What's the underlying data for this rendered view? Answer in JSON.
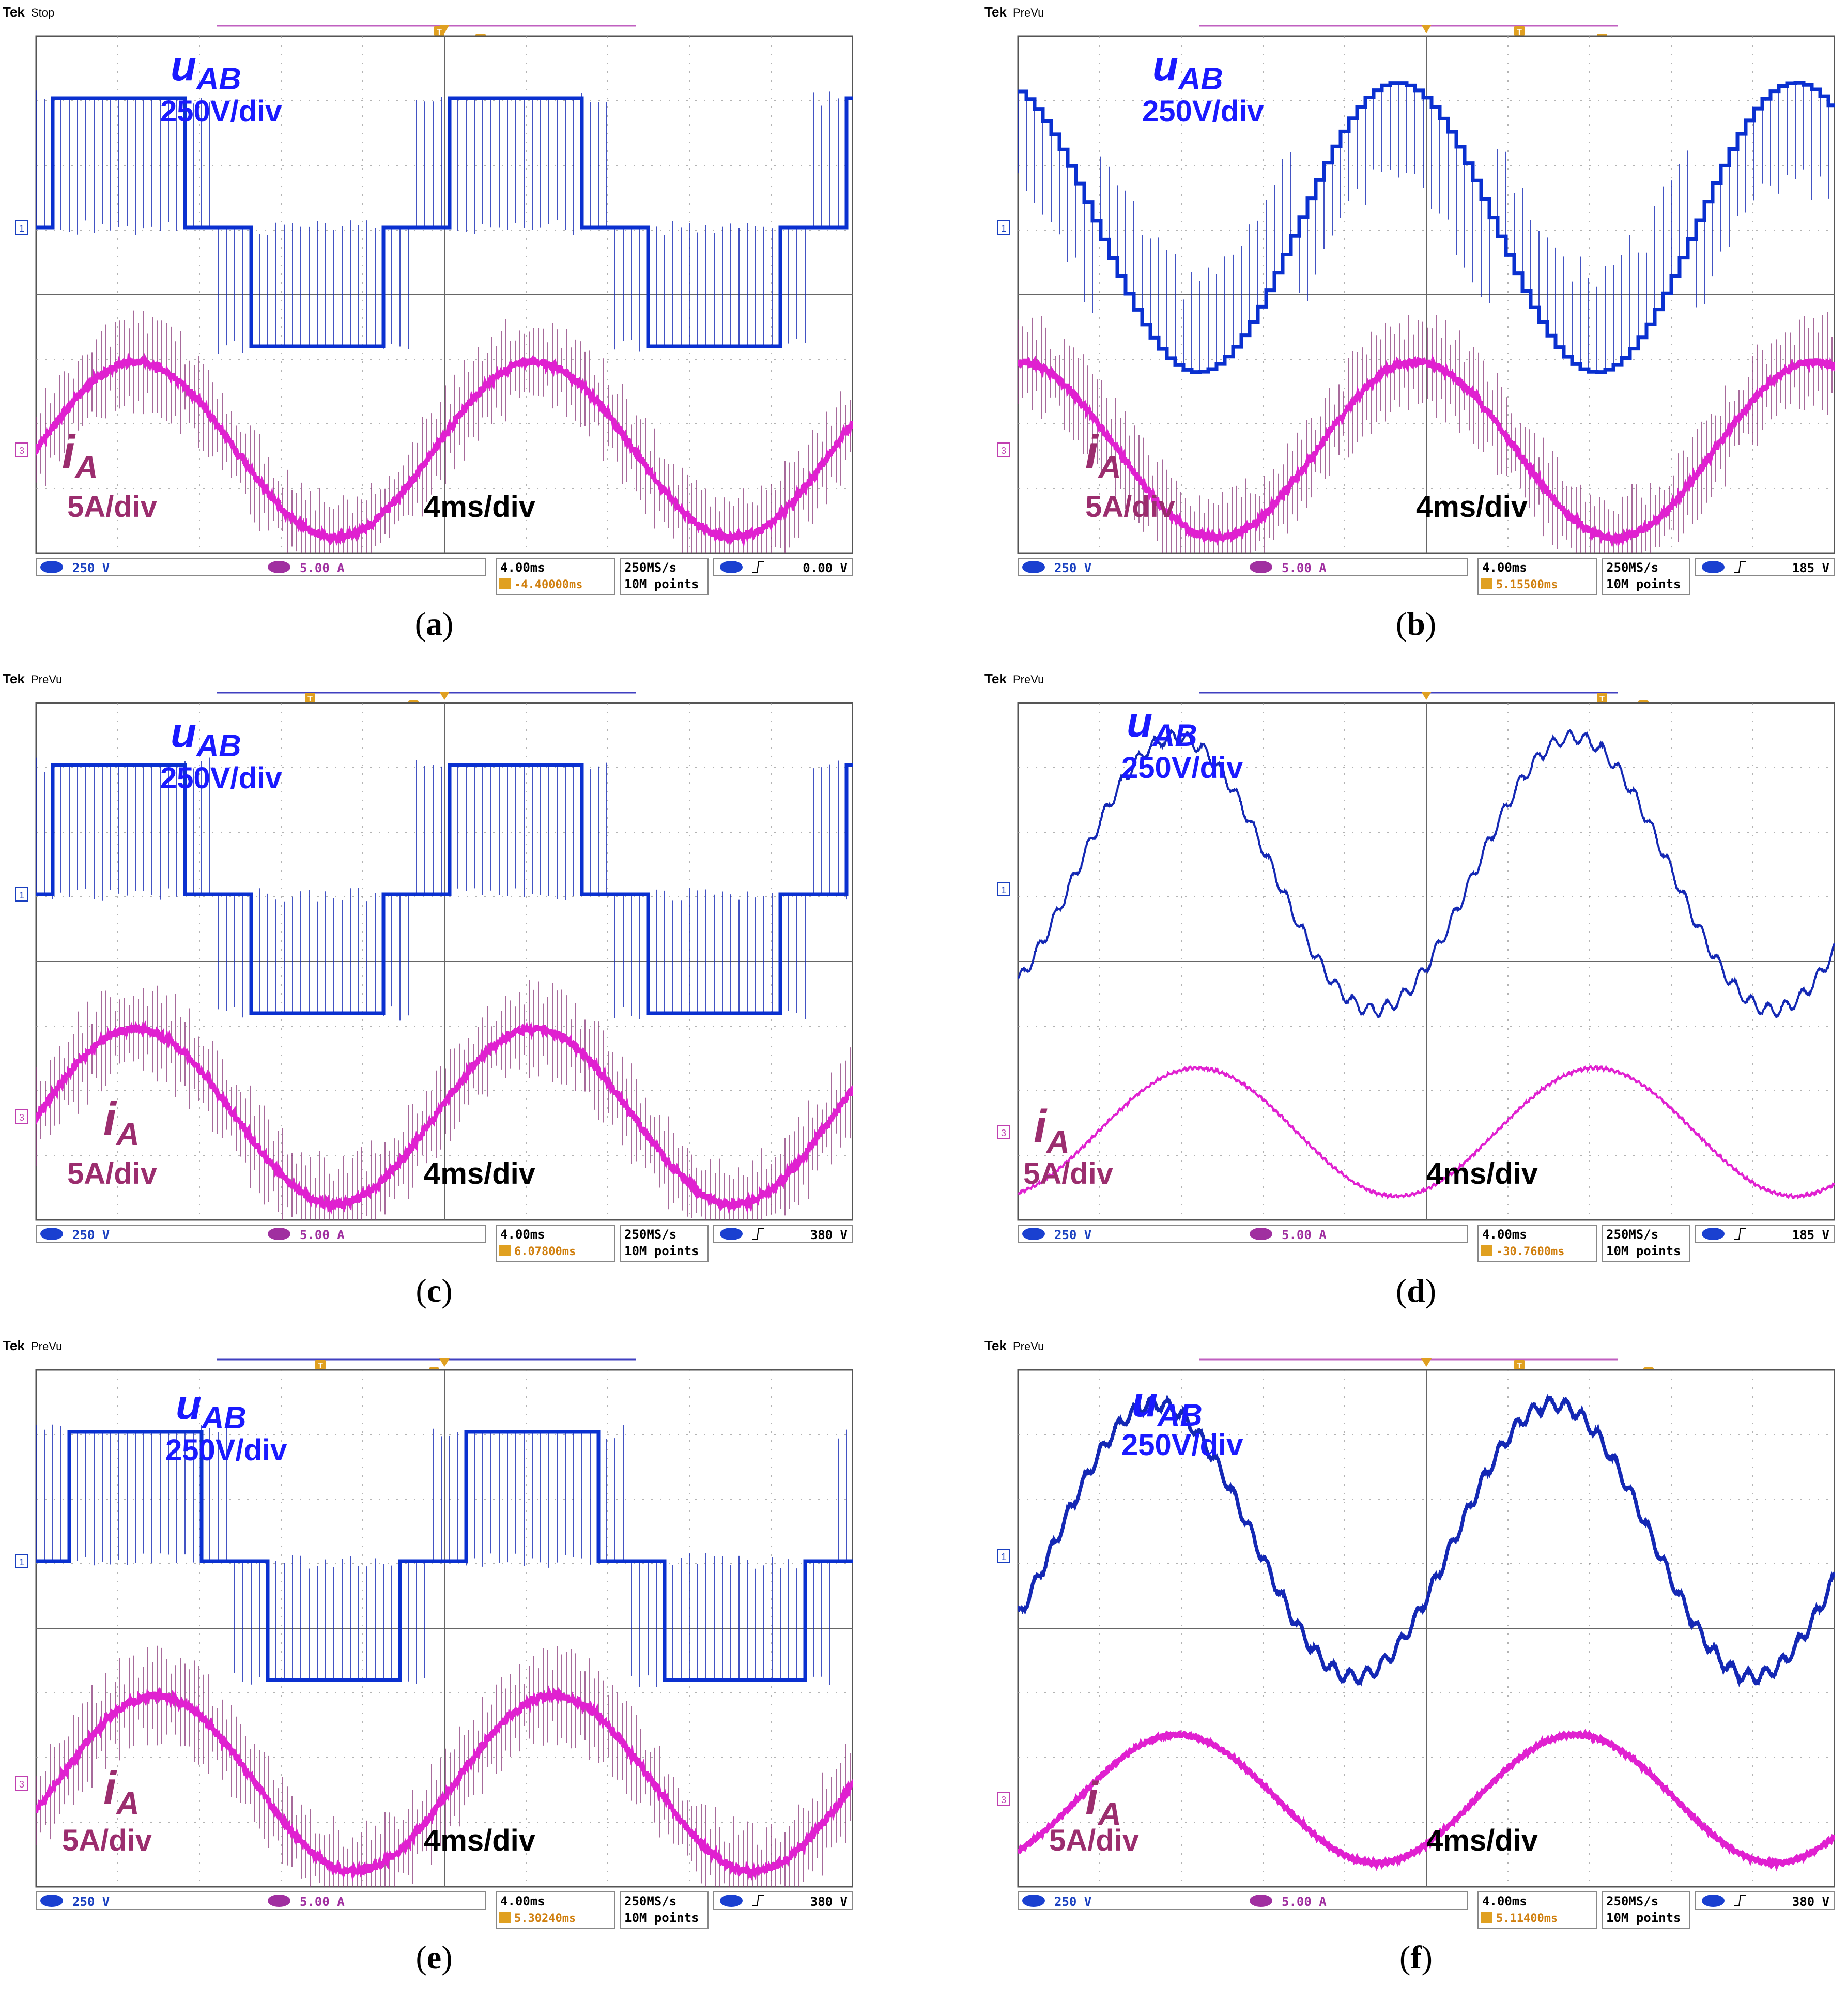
{
  "figure": {
    "panels": [
      {
        "id": "a",
        "caption_letter": "a",
        "status": "Stop",
        "volt_label": "250V/div",
        "curr_label": "5A/div",
        "time_label": "4ms/div",
        "ch1_scale": "250 V",
        "ch3_scale": "5.00 A",
        "timebase": "4.00ms",
        "trigger_pos": "-4.40000ms",
        "sample_rate": "250MS/s",
        "record": "10M points",
        "trigger_level": "0.00 V"
      },
      {
        "id": "b",
        "caption_letter": "b",
        "status": "PreVu",
        "volt_label": "250V/div",
        "curr_label": "5A/div",
        "time_label": "4ms/div",
        "ch1_scale": "250 V",
        "ch3_scale": "5.00 A",
        "timebase": "4.00ms",
        "trigger_pos": "5.15500ms",
        "sample_rate": "250MS/s",
        "record": "10M points",
        "trigger_level": "185 V"
      },
      {
        "id": "c",
        "caption_letter": "c",
        "status": "PreVu",
        "volt_label": "250V/div",
        "curr_label": "5A/div",
        "time_label": "4ms/div",
        "ch1_scale": "250 V",
        "ch3_scale": "5.00 A",
        "timebase": "4.00ms",
        "trigger_pos": "6.07800ms",
        "sample_rate": "250MS/s",
        "record": "10M points",
        "trigger_level": "380 V"
      },
      {
        "id": "d",
        "caption_letter": "d",
        "status": "PreVu",
        "volt_label": "250V/div",
        "curr_label": "5A/div",
        "time_label": "4ms/div",
        "ch1_scale": "250 V",
        "ch3_scale": "5.00 A",
        "timebase": "4.00ms",
        "trigger_pos": "-30.7600ms",
        "sample_rate": "250MS/s",
        "record": "10M points",
        "trigger_level": "185 V"
      },
      {
        "id": "e",
        "caption_letter": "e",
        "status": "PreVu",
        "volt_label": "250V/div",
        "curr_label": "5A/div",
        "time_label": "4ms/div",
        "ch1_scale": "250 V",
        "ch3_scale": "5.00 A",
        "timebase": "4.00ms",
        "trigger_pos": "5.30240ms",
        "sample_rate": "250MS/s",
        "record": "10M points",
        "trigger_level": "380 V"
      },
      {
        "id": "f",
        "caption_letter": "f",
        "status": "PreVu",
        "volt_label": "250V/div",
        "curr_label": "5A/div",
        "time_label": "4ms/div",
        "ch1_scale": "250 V",
        "ch3_scale": "5.00 A",
        "timebase": "4.00ms",
        "trigger_pos": "5.11400ms",
        "sample_rate": "250MS/s",
        "record": "10M points",
        "trigger_level": "380 V"
      }
    ],
    "brand": "Tek",
    "voltage_symbol": "u",
    "voltage_subscript": "AB",
    "current_symbol": "i",
    "current_subscript": "A",
    "ch1_marker": "1",
    "ch3_marker": "3",
    "trigger_marker": "T"
  },
  "chart_data": [
    {
      "type": "line",
      "panel": "a",
      "waveform": "three-level",
      "title": "",
      "xlabel": "4ms/div",
      "series": [
        {
          "name": "uAB",
          "unit": "V",
          "scale": "250V/div"
        },
        {
          "name": "iA",
          "unit": "A",
          "scale": "5A/div"
        }
      ],
      "x_divisions": 10,
      "y_divisions": 8,
      "grid": true
    },
    {
      "type": "line",
      "panel": "b",
      "waveform": "multilevel-sloped",
      "title": "",
      "xlabel": "4ms/div",
      "series": [
        {
          "name": "uAB",
          "unit": "V",
          "scale": "250V/div"
        },
        {
          "name": "iA",
          "unit": "A",
          "scale": "5A/div"
        }
      ],
      "x_divisions": 10,
      "y_divisions": 8,
      "grid": true
    },
    {
      "type": "line",
      "panel": "c",
      "waveform": "three-level",
      "title": "",
      "xlabel": "4ms/div",
      "series": [
        {
          "name": "uAB",
          "unit": "V",
          "scale": "250V/div"
        },
        {
          "name": "iA",
          "unit": "A",
          "scale": "5A/div"
        }
      ],
      "x_divisions": 10,
      "y_divisions": 8,
      "grid": true
    },
    {
      "type": "line",
      "panel": "d",
      "waveform": "sinusoidal",
      "title": "",
      "xlabel": "4ms/div",
      "series": [
        {
          "name": "uAB",
          "unit": "V",
          "scale": "250V/div"
        },
        {
          "name": "iA",
          "unit": "A",
          "scale": "5A/div"
        }
      ],
      "x_divisions": 10,
      "y_divisions": 8,
      "grid": true
    },
    {
      "type": "line",
      "panel": "e",
      "waveform": "three-level",
      "title": "",
      "xlabel": "4ms/div",
      "series": [
        {
          "name": "uAB",
          "unit": "V",
          "scale": "250V/div"
        },
        {
          "name": "iA",
          "unit": "A",
          "scale": "5A/div"
        }
      ],
      "x_divisions": 10,
      "y_divisions": 8,
      "grid": true
    },
    {
      "type": "line",
      "panel": "f",
      "waveform": "sinusoidal",
      "title": "",
      "xlabel": "4ms/div",
      "series": [
        {
          "name": "uAB",
          "unit": "V",
          "scale": "250V/div"
        },
        {
          "name": "iA",
          "unit": "A",
          "scale": "5A/div"
        }
      ],
      "x_divisions": 10,
      "y_divisions": 8,
      "grid": true
    }
  ],
  "colors": {
    "voltage_label": "#1a1aff",
    "voltage_trace": "#1428b4",
    "current_label": "#9b2d6e",
    "current_trace": "#e020d0",
    "current_spike": "#8a3a7a",
    "grid": "#9a9a9a",
    "trigger": "#e0a020",
    "status_bar": "#1a40c0"
  }
}
